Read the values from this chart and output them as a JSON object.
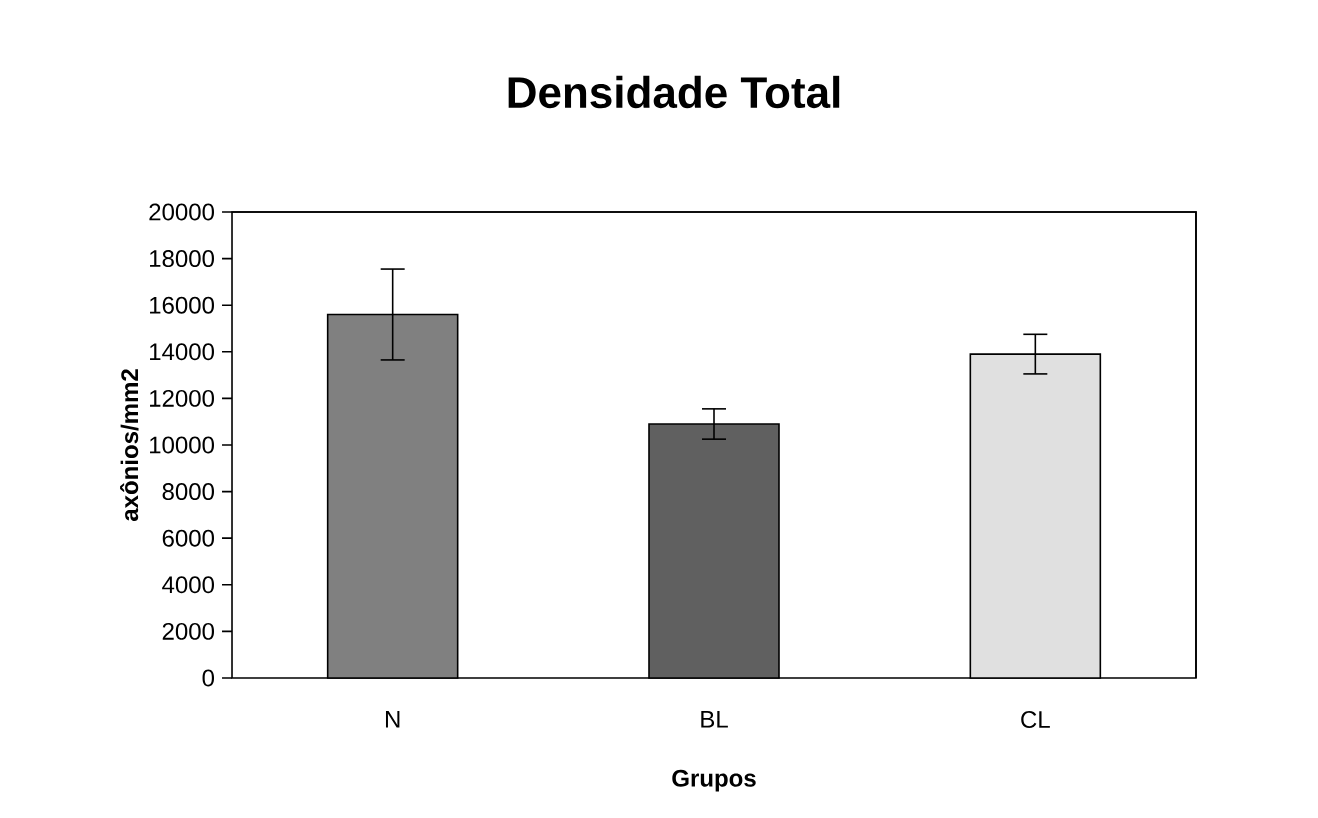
{
  "chart_data": {
    "type": "bar",
    "title": "Densidade Total",
    "xlabel": "Grupos",
    "ylabel": "axônios/mm2",
    "categories": [
      "N",
      "BL",
      "CL"
    ],
    "values": [
      15600,
      10900,
      13900
    ],
    "errors": [
      1950,
      650,
      850
    ],
    "colors": [
      "#808080",
      "#606060",
      "#e0e0e0"
    ],
    "ylim": [
      0,
      20000
    ],
    "yticks": [
      0,
      2000,
      4000,
      6000,
      8000,
      10000,
      12000,
      14000,
      16000,
      18000,
      20000
    ],
    "grid": false
  }
}
